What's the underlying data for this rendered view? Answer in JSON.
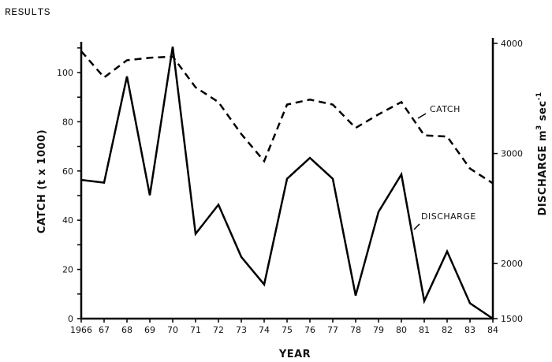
{
  "page": {
    "heading": "RESULTS"
  },
  "axes": {
    "x_title": "YEAR",
    "y_left_title": "CATCH (t x 1000)",
    "y_right_title": "DISCHARGE",
    "y_right_unit": "m",
    "y_right_unit_sup": "3",
    "y_right_unit_tail": "sec",
    "y_right_unit_tail_sup": "-1"
  },
  "series_labels": {
    "catch": "CATCH",
    "discharge": "DISCHARGE"
  },
  "chart_data": {
    "type": "line",
    "title": "",
    "xlabel": "YEAR",
    "ylabel": "CATCH (t x 1000)",
    "ylabel_right": "DISCHARGE m3 sec-1",
    "x": [
      "1966",
      "67",
      "68",
      "69",
      "70",
      "71",
      "72",
      "73",
      "74",
      "75",
      "76",
      "77",
      "78",
      "79",
      "80",
      "81",
      "82",
      "83",
      "84"
    ],
    "ylim": [
      0,
      112
    ],
    "ylim_right": [
      1500,
      4000
    ],
    "yticks_left": [
      0,
      20,
      40,
      60,
      80,
      100
    ],
    "yticks_right": [
      1500,
      2000,
      3000,
      4000
    ],
    "grid": false,
    "legend": "inline labels",
    "series": [
      {
        "name": "CATCH",
        "axis": "left",
        "style": "dashed",
        "values": [
          108.7,
          98,
          105,
          106,
          106.5,
          94,
          88,
          75,
          64,
          87,
          89,
          87,
          77.5,
          83,
          88,
          74.5,
          74,
          61,
          55
        ]
      },
      {
        "name": "DISCHARGE",
        "axis": "right",
        "style": "solid",
        "values": [
          2760,
          2735,
          3700,
          2620,
          3970,
          2270,
          2535,
          2060,
          1810,
          2770,
          2960,
          2770,
          1710,
          2470,
          2810,
          1660,
          2110,
          1640,
          1500
        ]
      }
    ]
  }
}
